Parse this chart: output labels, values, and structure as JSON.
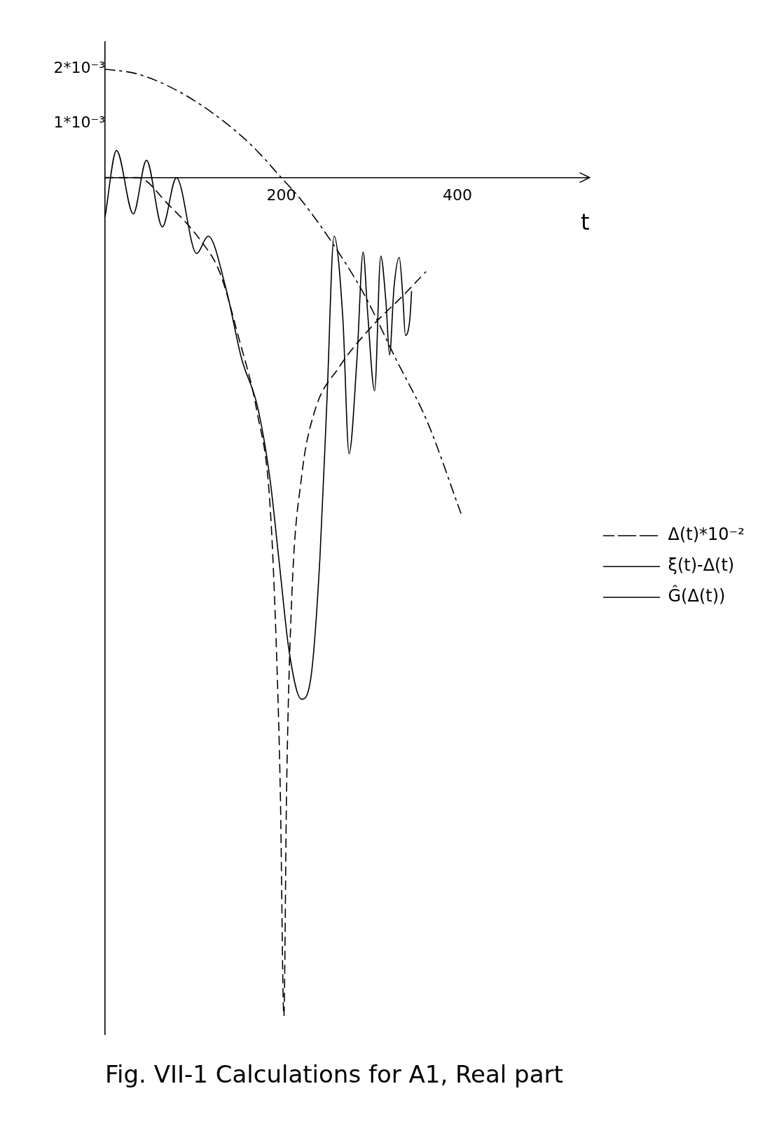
{
  "chart_data": {
    "type": "line",
    "title": "Fig. VII-1 Calculations for A1, Real part",
    "xlabel": "t",
    "xlim": [
      0,
      550
    ],
    "xticks": [
      200,
      400
    ],
    "ylim": [
      -0.0158,
      0.0025
    ],
    "yticks": [
      {
        "value": 0.001,
        "label": "1*10⁻³"
      },
      {
        "value": 0.002,
        "label": "2*10⁻³"
      }
    ],
    "grid": false,
    "legend": "right",
    "marker": "none",
    "series": [
      {
        "name": "Δ(t)*10⁻²",
        "color": "#000000",
        "line_style": "dashdot",
        "x": [
          0,
          37,
          80,
          123,
          166,
          200,
          223,
          259,
          295,
          330,
          366,
          404
        ],
        "values": [
          0.002,
          0.00191,
          0.00162,
          0.00118,
          0.0006,
          0,
          -0.00042,
          -0.00123,
          -0.00218,
          -0.00334,
          -0.00451,
          -0.00619
        ]
      },
      {
        "name": "ξ(t)-Δ(t)",
        "color": "#000000",
        "line_style": "solid",
        "x": [
          0,
          13,
          32,
          47,
          65,
          81,
          104,
          117,
          137,
          155,
          173,
          187,
          198,
          209,
          223,
          234,
          244,
          252,
          260,
          270,
          277,
          286,
          293,
          298,
          306,
          313,
          319,
          323,
          328,
          334,
          338,
          341,
          346,
          348
        ],
        "values": [
          -0.00072,
          0.0005,
          -0.00067,
          0.00032,
          -0.00091,
          0,
          -0.0014,
          -0.00108,
          -0.00203,
          -0.00334,
          -0.00422,
          -0.00553,
          -0.00714,
          -0.00874,
          -0.00962,
          -0.00918,
          -0.00699,
          -0.00407,
          -0.00108,
          -0.00261,
          -0.00509,
          -0.00334,
          -0.00137,
          -0.00247,
          -0.00393,
          -0.00145,
          -0.00232,
          -0.00327,
          -0.00203,
          -0.00147,
          -0.00218,
          -0.00291,
          -0.00261,
          -0.0021
        ]
      },
      {
        "name": "Ĝ(Δ(t))",
        "color": "#000000",
        "line_style": "dashed",
        "x": [
          0,
          37,
          72,
          108,
          130,
          151,
          173,
          187,
          194,
          199,
          203,
          206,
          212,
          223,
          237,
          266,
          302,
          338,
          364
        ],
        "values": [
          0,
          0,
          -0.0005,
          -0.00115,
          -0.00174,
          -0.00291,
          -0.00436,
          -0.00597,
          -0.00845,
          -0.01137,
          -0.01546,
          -0.01137,
          -0.00772,
          -0.00553,
          -0.00436,
          -0.00349,
          -0.00276,
          -0.00218,
          -0.00174
        ]
      }
    ]
  }
}
